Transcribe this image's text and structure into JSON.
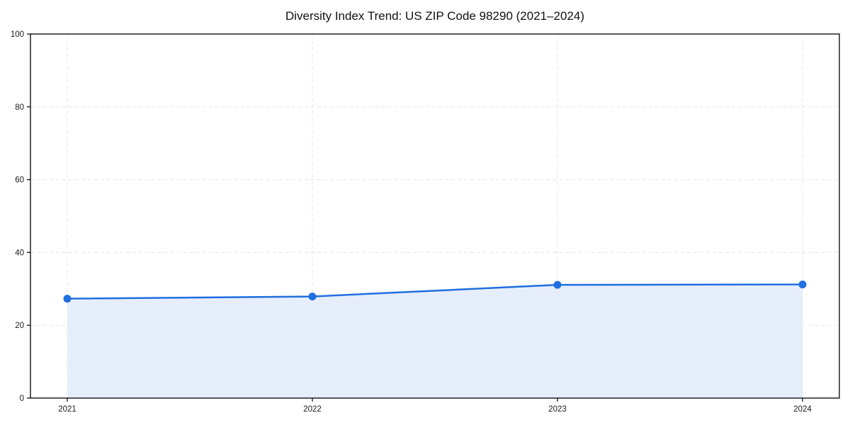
{
  "page": {
    "background_color": "#ffffff"
  },
  "chart_data": {
    "type": "area",
    "title": "Diversity Index Trend: US ZIP Code 98290 (2021–2024)",
    "categories": [
      "2021",
      "2022",
      "2023",
      "2024"
    ],
    "series": [
      {
        "name": "Diversity Index",
        "values": [
          27.3,
          27.9,
          31.1,
          31.2
        ]
      }
    ],
    "xlabel": "",
    "ylabel": "",
    "ylim": [
      0,
      100
    ],
    "yticks": [
      0,
      20,
      40,
      60,
      80,
      100
    ],
    "grid": "dashed-both-axes",
    "legend": "none",
    "colors": {
      "line": "#1f6fe0",
      "marker": "#1f6fe0",
      "area_fill": "#e6eefc",
      "grid": "#e4e4e4",
      "axis": "#000000",
      "tick_label": "#1a1a1a",
      "title": "#111111"
    }
  }
}
